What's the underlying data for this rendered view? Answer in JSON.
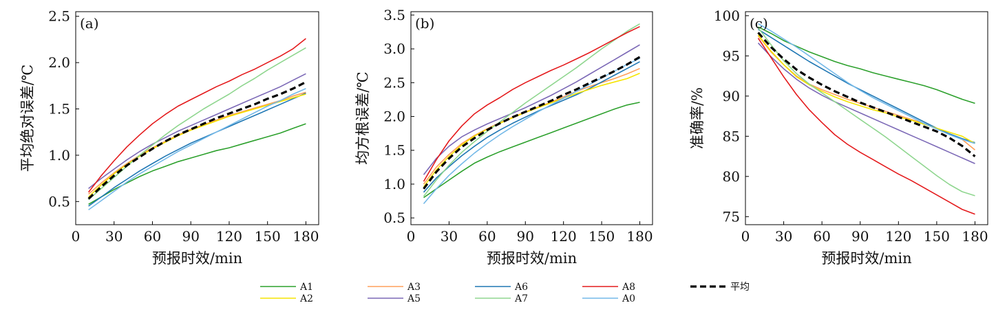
{
  "chart_data": [
    {
      "type": "line",
      "panel_label": "(a)",
      "xlabel": "预报时效/min",
      "ylabel": "平均绝对误差/℃",
      "xlim": [
        0,
        190
      ],
      "ylim": [
        0.25,
        2.55
      ],
      "xticks": [
        0,
        30,
        60,
        90,
        120,
        150,
        180
      ],
      "yticks": [
        0.5,
        1.0,
        1.5,
        2.0,
        2.5
      ],
      "ytick_labels": [
        "0.5",
        "1.0",
        "1.5",
        "2.0",
        "2.5"
      ],
      "x": [
        10,
        20,
        30,
        40,
        50,
        60,
        70,
        80,
        90,
        100,
        110,
        120,
        130,
        140,
        150,
        160,
        170,
        180
      ],
      "series": [
        {
          "name": "A1",
          "color": "#2ca02c",
          "values": [
            0.47,
            0.55,
            0.63,
            0.7,
            0.77,
            0.83,
            0.88,
            0.93,
            0.97,
            1.01,
            1.05,
            1.08,
            1.12,
            1.16,
            1.2,
            1.24,
            1.29,
            1.34
          ]
        },
        {
          "name": "A3",
          "color": "#ff9f5a",
          "values": [
            0.58,
            0.7,
            0.81,
            0.91,
            1.0,
            1.08,
            1.15,
            1.22,
            1.28,
            1.33,
            1.38,
            1.43,
            1.47,
            1.51,
            1.55,
            1.59,
            1.64,
            1.68
          ]
        },
        {
          "name": "A6",
          "color": "#1f77b4",
          "values": [
            0.45,
            0.55,
            0.65,
            0.74,
            0.83,
            0.91,
            0.99,
            1.06,
            1.13,
            1.19,
            1.25,
            1.31,
            1.37,
            1.43,
            1.49,
            1.55,
            1.61,
            1.67
          ]
        },
        {
          "name": "A8",
          "color": "#e41a1c",
          "values": [
            0.6,
            0.78,
            0.94,
            1.09,
            1.22,
            1.34,
            1.44,
            1.53,
            1.6,
            1.67,
            1.74,
            1.8,
            1.87,
            1.93,
            2.0,
            2.07,
            2.15,
            2.26
          ]
        },
        {
          "name": "A2",
          "color": "#f5e400",
          "values": [
            0.55,
            0.68,
            0.8,
            0.9,
            0.99,
            1.07,
            1.14,
            1.21,
            1.27,
            1.32,
            1.37,
            1.42,
            1.46,
            1.5,
            1.54,
            1.58,
            1.62,
            1.66
          ]
        },
        {
          "name": "A5",
          "color": "#7b68b6",
          "values": [
            0.64,
            0.75,
            0.85,
            0.95,
            1.04,
            1.12,
            1.19,
            1.26,
            1.32,
            1.38,
            1.44,
            1.5,
            1.56,
            1.62,
            1.68,
            1.74,
            1.81,
            1.88
          ]
        },
        {
          "name": "A7",
          "color": "#8fd68f",
          "values": [
            0.52,
            0.64,
            0.76,
            0.88,
            1.0,
            1.11,
            1.22,
            1.32,
            1.41,
            1.5,
            1.58,
            1.66,
            1.75,
            1.83,
            1.92,
            2.0,
            2.08,
            2.16
          ]
        },
        {
          "name": "A0",
          "color": "#74b9e8",
          "values": [
            0.41,
            0.51,
            0.61,
            0.71,
            0.8,
            0.88,
            0.96,
            1.04,
            1.11,
            1.18,
            1.25,
            1.32,
            1.39,
            1.46,
            1.53,
            1.59,
            1.66,
            1.72
          ]
        },
        {
          "name": "平均",
          "color": "#000000",
          "dashed": true,
          "values": [
            0.53,
            0.66,
            0.78,
            0.89,
            0.98,
            1.07,
            1.15,
            1.22,
            1.28,
            1.34,
            1.4,
            1.45,
            1.5,
            1.55,
            1.61,
            1.66,
            1.72,
            1.79
          ]
        }
      ]
    },
    {
      "type": "line",
      "panel_label": "(b)",
      "xlabel": "预报时效/min",
      "ylabel": "均方根误差/℃",
      "xlim": [
        0,
        190
      ],
      "ylim": [
        0.4,
        3.55
      ],
      "xticks": [
        0,
        30,
        60,
        90,
        120,
        150,
        180
      ],
      "yticks": [
        0.5,
        1.0,
        1.5,
        2.0,
        2.5,
        3.0,
        3.5
      ],
      "ytick_labels": [
        "0.5",
        "1.0",
        "1.5",
        "2.0",
        "2.5",
        "3.0",
        "3.5"
      ],
      "x": [
        10,
        20,
        30,
        40,
        50,
        60,
        70,
        80,
        90,
        100,
        110,
        120,
        130,
        140,
        150,
        160,
        170,
        180
      ],
      "series": [
        {
          "name": "A1",
          "color": "#2ca02c",
          "values": [
            0.8,
            0.93,
            1.06,
            1.19,
            1.31,
            1.4,
            1.48,
            1.55,
            1.62,
            1.69,
            1.76,
            1.83,
            1.9,
            1.97,
            2.04,
            2.11,
            2.17,
            2.21
          ]
        },
        {
          "name": "A3",
          "color": "#ff9f5a",
          "values": [
            1.0,
            1.25,
            1.44,
            1.6,
            1.72,
            1.82,
            1.91,
            1.99,
            2.07,
            2.14,
            2.21,
            2.29,
            2.37,
            2.44,
            2.5,
            2.56,
            2.63,
            2.71
          ]
        },
        {
          "name": "A6",
          "color": "#1f77b4",
          "values": [
            0.88,
            1.09,
            1.26,
            1.42,
            1.56,
            1.69,
            1.8,
            1.9,
            1.99,
            2.08,
            2.16,
            2.24,
            2.32,
            2.41,
            2.51,
            2.61,
            2.71,
            2.81
          ]
        },
        {
          "name": "A8",
          "color": "#e41a1c",
          "values": [
            1.04,
            1.36,
            1.64,
            1.86,
            2.04,
            2.17,
            2.28,
            2.4,
            2.5,
            2.59,
            2.68,
            2.76,
            2.85,
            2.94,
            3.04,
            3.14,
            3.24,
            3.33
          ]
        },
        {
          "name": "A2",
          "color": "#f5e400",
          "values": [
            0.96,
            1.21,
            1.41,
            1.58,
            1.71,
            1.81,
            1.9,
            1.98,
            2.06,
            2.13,
            2.2,
            2.27,
            2.34,
            2.4,
            2.46,
            2.51,
            2.56,
            2.64
          ]
        },
        {
          "name": "A5",
          "color": "#7b68b6",
          "values": [
            1.14,
            1.38,
            1.56,
            1.7,
            1.8,
            1.89,
            1.97,
            2.05,
            2.13,
            2.22,
            2.31,
            2.41,
            2.51,
            2.62,
            2.73,
            2.84,
            2.95,
            3.06
          ]
        },
        {
          "name": "A7",
          "color": "#8fd68f",
          "values": [
            0.82,
            1.06,
            1.28,
            1.47,
            1.63,
            1.78,
            1.92,
            2.06,
            2.2,
            2.33,
            2.46,
            2.59,
            2.72,
            2.86,
            3.0,
            3.13,
            3.26,
            3.37
          ]
        },
        {
          "name": "A0",
          "color": "#74b9e8",
          "values": [
            0.71,
            0.93,
            1.13,
            1.3,
            1.46,
            1.6,
            1.73,
            1.85,
            1.96,
            2.07,
            2.17,
            2.27,
            2.37,
            2.47,
            2.57,
            2.67,
            2.77,
            2.86
          ]
        },
        {
          "name": "平均",
          "color": "#000000",
          "dashed": true,
          "values": [
            0.93,
            1.18,
            1.38,
            1.55,
            1.68,
            1.8,
            1.9,
            1.99,
            2.07,
            2.15,
            2.23,
            2.32,
            2.4,
            2.49,
            2.58,
            2.67,
            2.77,
            2.88
          ]
        }
      ]
    },
    {
      "type": "line",
      "panel_label": "(c)",
      "xlabel": "预报时效/min",
      "ylabel": "准确率/%",
      "xlim": [
        0,
        190
      ],
      "ylim": [
        74,
        100.5
      ],
      "xticks": [
        0,
        30,
        60,
        90,
        120,
        150,
        180
      ],
      "yticks": [
        75,
        80,
        85,
        90,
        95,
        100
      ],
      "ytick_labels": [
        "75",
        "80",
        "85",
        "90",
        "95",
        "100"
      ],
      "x": [
        10,
        20,
        30,
        40,
        50,
        60,
        70,
        80,
        90,
        100,
        110,
        120,
        130,
        140,
        150,
        160,
        170,
        180
      ],
      "series": [
        {
          "name": "A1",
          "color": "#2ca02c",
          "values": [
            98.6,
            97.8,
            96.9,
            96.2,
            95.5,
            94.9,
            94.3,
            93.8,
            93.4,
            92.9,
            92.5,
            92.1,
            91.7,
            91.3,
            90.8,
            90.2,
            89.6,
            89.1
          ]
        },
        {
          "name": "A3",
          "color": "#ff9f5a",
          "values": [
            97.5,
            95.5,
            93.9,
            92.5,
            91.5,
            90.8,
            90.2,
            89.6,
            89.1,
            88.6,
            88.1,
            87.6,
            87.1,
            86.6,
            86.0,
            85.3,
            84.6,
            83.3
          ]
        },
        {
          "name": "A6",
          "color": "#1f77b4",
          "values": [
            98.3,
            97.3,
            96.3,
            95.3,
            94.3,
            93.4,
            92.5,
            91.6,
            90.8,
            90.0,
            89.2,
            88.4,
            87.6,
            86.8,
            86.0,
            85.3,
            84.7,
            84.2
          ]
        },
        {
          "name": "A8",
          "color": "#e41a1c",
          "values": [
            97.2,
            94.8,
            92.4,
            90.2,
            88.3,
            86.7,
            85.2,
            84.0,
            83.0,
            82.1,
            81.2,
            80.3,
            79.5,
            78.6,
            77.7,
            76.8,
            75.9,
            75.3
          ]
        },
        {
          "name": "A2",
          "color": "#f5e400",
          "values": [
            97.6,
            95.6,
            93.9,
            92.4,
            91.4,
            90.6,
            89.9,
            89.3,
            88.8,
            88.3,
            87.9,
            87.4,
            87.0,
            86.5,
            86.0,
            85.5,
            85.0,
            84.1
          ]
        },
        {
          "name": "A5",
          "color": "#7b68b6",
          "values": [
            96.6,
            94.9,
            93.4,
            92.1,
            91.0,
            90.1,
            89.3,
            88.6,
            87.9,
            87.2,
            86.5,
            85.8,
            85.1,
            84.4,
            83.7,
            83.0,
            82.3,
            81.6
          ]
        },
        {
          "name": "A7",
          "color": "#8fd68f",
          "values": [
            98.5,
            96.4,
            94.4,
            92.8,
            91.5,
            90.4,
            89.3,
            88.2,
            87.1,
            86.0,
            84.9,
            83.7,
            82.5,
            81.3,
            80.1,
            79.0,
            78.1,
            77.6
          ]
        },
        {
          "name": "A0",
          "color": "#74b9e8",
          "values": [
            99.0,
            98.1,
            97.1,
            96.1,
            95.0,
            93.9,
            92.8,
            91.7,
            90.7,
            89.8,
            89.0,
            88.2,
            87.4,
            86.6,
            85.9,
            85.2,
            84.6,
            84.1
          ]
        },
        {
          "name": "平均",
          "color": "#000000",
          "dashed": true,
          "values": [
            97.9,
            96.1,
            94.6,
            93.3,
            92.3,
            91.4,
            90.6,
            89.9,
            89.2,
            88.6,
            88.0,
            87.4,
            86.8,
            86.2,
            85.6,
            84.8,
            83.8,
            82.5
          ]
        }
      ]
    }
  ],
  "legend": {
    "placement": "bottom-center",
    "entries": [
      {
        "name": "A1",
        "color": "#2ca02c"
      },
      {
        "name": "A2",
        "color": "#f5e400"
      },
      {
        "name": "A3",
        "color": "#ff9f5a"
      },
      {
        "name": "A5",
        "color": "#7b68b6"
      },
      {
        "name": "A6",
        "color": "#1f77b4"
      },
      {
        "name": "A7",
        "color": "#8fd68f"
      },
      {
        "name": "A8",
        "color": "#e41a1c"
      },
      {
        "name": "A0",
        "color": "#74b9e8"
      },
      {
        "name": "平均",
        "color": "#000000",
        "dashed": true
      }
    ]
  }
}
